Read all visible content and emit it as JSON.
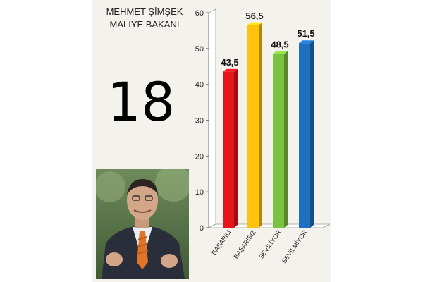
{
  "header": {
    "name_line1": "MEHMET ŞİMŞEK",
    "name_line2": "MALİYE BAKANI"
  },
  "rank": "18",
  "colors": {
    "panel_bg": "#f4f2ec",
    "red": "#e8141b",
    "yellow": "#ffc20e",
    "green": "#7cc242",
    "blue": "#1f6fc0"
  },
  "chart_data": {
    "type": "bar",
    "categories": [
      "BAŞARILI",
      "BAŞARISIZ",
      "SEVİLİYOR",
      "SEVİLMİYOR"
    ],
    "values": [
      43.5,
      56.5,
      48.5,
      51.5
    ],
    "value_labels": [
      "43,5",
      "56,5",
      "48,5",
      "51,5"
    ],
    "bar_colors": [
      "#e8141b",
      "#ffc20e",
      "#7cc242",
      "#1f6fc0"
    ],
    "ylim": [
      0,
      60
    ],
    "yticks": [
      0,
      10,
      20,
      30,
      40,
      50,
      60
    ],
    "grid": false,
    "legend": "none"
  }
}
